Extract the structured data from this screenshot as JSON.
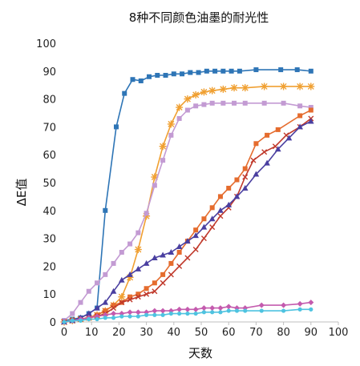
{
  "chart_data": {
    "type": "line",
    "title": "8种不同颜色油墨的耐光性",
    "xlabel": "天数",
    "ylabel": "ΔE值",
    "xlim": [
      0,
      100
    ],
    "ylim": [
      0,
      100
    ],
    "xticks": [
      "0",
      "10",
      "20",
      "30",
      "40",
      "50",
      "60",
      "70",
      "80",
      "90",
      "100"
    ],
    "yticks": [
      "0",
      "10",
      "20",
      "30",
      "40",
      "50",
      "60",
      "70",
      "80",
      "90",
      "100"
    ],
    "grid": false,
    "legend": "none",
    "series": [
      {
        "color": "#2e75b6",
        "marker": "square",
        "points": [
          [
            0,
            0.5
          ],
          [
            3,
            1
          ],
          [
            6,
            1.5
          ],
          [
            9,
            3
          ],
          [
            12,
            5
          ],
          [
            15,
            40
          ],
          [
            19,
            70
          ],
          [
            22,
            82
          ],
          [
            25,
            87
          ],
          [
            28,
            86.5
          ],
          [
            31,
            88
          ],
          [
            34,
            88.5
          ],
          [
            37,
            88.5
          ],
          [
            40,
            89
          ],
          [
            43,
            89
          ],
          [
            46,
            89.5
          ],
          [
            49,
            89.5
          ],
          [
            52,
            90
          ],
          [
            55,
            90
          ],
          [
            58,
            90
          ],
          [
            61,
            90
          ],
          [
            64,
            90
          ],
          [
            70,
            90.5
          ],
          [
            79,
            90.5
          ],
          [
            85,
            90.5
          ],
          [
            90,
            90
          ]
        ]
      },
      {
        "color": "#f0a032",
        "marker": "star",
        "points": [
          [
            0,
            0
          ],
          [
            3,
            0.5
          ],
          [
            6,
            1
          ],
          [
            9,
            1.5
          ],
          [
            12,
            2.5
          ],
          [
            15,
            4
          ],
          [
            18,
            6
          ],
          [
            21,
            9
          ],
          [
            24,
            16
          ],
          [
            27,
            26
          ],
          [
            30,
            38
          ],
          [
            33,
            52
          ],
          [
            36,
            63
          ],
          [
            39,
            71
          ],
          [
            42,
            77
          ],
          [
            45,
            80
          ],
          [
            48,
            81.5
          ],
          [
            51,
            82.5
          ],
          [
            54,
            83
          ],
          [
            58,
            83.5
          ],
          [
            62,
            84
          ],
          [
            66,
            84
          ],
          [
            73,
            84.5
          ],
          [
            80,
            84.5
          ],
          [
            86,
            84.5
          ],
          [
            90,
            84.5
          ]
        ]
      },
      {
        "color": "#c39bd3",
        "marker": "square",
        "points": [
          [
            0,
            0.5
          ],
          [
            3,
            3
          ],
          [
            6,
            7
          ],
          [
            9,
            11
          ],
          [
            12,
            14
          ],
          [
            15,
            17
          ],
          [
            18,
            21
          ],
          [
            21,
            25
          ],
          [
            24,
            28
          ],
          [
            27,
            32
          ],
          [
            30,
            39
          ],
          [
            33,
            49
          ],
          [
            36,
            58
          ],
          [
            39,
            67
          ],
          [
            42,
            73
          ],
          [
            45,
            76
          ],
          [
            48,
            77.5
          ],
          [
            51,
            78
          ],
          [
            54,
            78.5
          ],
          [
            58,
            78.5
          ],
          [
            62,
            78.5
          ],
          [
            66,
            78.5
          ],
          [
            73,
            78.5
          ],
          [
            80,
            78.5
          ],
          [
            86,
            77.5
          ],
          [
            90,
            77
          ]
        ]
      },
      {
        "color": "#e56c2e",
        "marker": "square",
        "points": [
          [
            0,
            0
          ],
          [
            3,
            0.5
          ],
          [
            6,
            1
          ],
          [
            9,
            1.5
          ],
          [
            12,
            2.5
          ],
          [
            15,
            4
          ],
          [
            18,
            6
          ],
          [
            21,
            7
          ],
          [
            24,
            9
          ],
          [
            27,
            10
          ],
          [
            30,
            12
          ],
          [
            33,
            14
          ],
          [
            36,
            17
          ],
          [
            39,
            21
          ],
          [
            42,
            25
          ],
          [
            45,
            29
          ],
          [
            48,
            33
          ],
          [
            51,
            37
          ],
          [
            54,
            41
          ],
          [
            57,
            45
          ],
          [
            60,
            48
          ],
          [
            63,
            51
          ],
          [
            66,
            55
          ],
          [
            70,
            64
          ],
          [
            74,
            67
          ],
          [
            78,
            69
          ],
          [
            86,
            74
          ],
          [
            90,
            76
          ]
        ]
      },
      {
        "color": "#c0392b",
        "marker": "x",
        "points": [
          [
            0,
            0
          ],
          [
            3,
            0.5
          ],
          [
            6,
            1
          ],
          [
            9,
            1.5
          ],
          [
            12,
            2
          ],
          [
            15,
            3
          ],
          [
            18,
            5
          ],
          [
            21,
            7
          ],
          [
            24,
            8
          ],
          [
            27,
            9
          ],
          [
            30,
            10
          ],
          [
            33,
            11
          ],
          [
            36,
            14
          ],
          [
            39,
            17
          ],
          [
            42,
            20
          ],
          [
            45,
            23
          ],
          [
            48,
            26
          ],
          [
            51,
            30
          ],
          [
            54,
            34
          ],
          [
            57,
            38
          ],
          [
            60,
            41
          ],
          [
            63,
            45
          ],
          [
            66,
            52
          ],
          [
            69,
            58
          ],
          [
            73,
            61
          ],
          [
            77,
            63
          ],
          [
            81,
            67
          ],
          [
            86,
            70
          ],
          [
            90,
            73
          ]
        ]
      },
      {
        "color": "#4a3fa0",
        "marker": "triangle",
        "points": [
          [
            0,
            0
          ],
          [
            3,
            0.5
          ],
          [
            6,
            1.5
          ],
          [
            9,
            3
          ],
          [
            12,
            5
          ],
          [
            15,
            7
          ],
          [
            18,
            11
          ],
          [
            21,
            15
          ],
          [
            24,
            17
          ],
          [
            27,
            19
          ],
          [
            30,
            21
          ],
          [
            33,
            23
          ],
          [
            36,
            24
          ],
          [
            39,
            25
          ],
          [
            42,
            27
          ],
          [
            45,
            29
          ],
          [
            48,
            31
          ],
          [
            51,
            34
          ],
          [
            54,
            37
          ],
          [
            57,
            40
          ],
          [
            60,
            42
          ],
          [
            63,
            45
          ],
          [
            66,
            48
          ],
          [
            70,
            53
          ],
          [
            74,
            57
          ],
          [
            78,
            62
          ],
          [
            82,
            66
          ],
          [
            86,
            70
          ],
          [
            90,
            72
          ]
        ]
      },
      {
        "color": "#c45bae",
        "marker": "diamond",
        "points": [
          [
            0,
            0
          ],
          [
            3,
            0.5
          ],
          [
            6,
            1
          ],
          [
            9,
            1.5
          ],
          [
            12,
            2
          ],
          [
            15,
            2.5
          ],
          [
            18,
            3
          ],
          [
            21,
            3
          ],
          [
            24,
            3.5
          ],
          [
            27,
            3.5
          ],
          [
            30,
            3.5
          ],
          [
            33,
            4
          ],
          [
            36,
            4
          ],
          [
            39,
            4
          ],
          [
            42,
            4.5
          ],
          [
            45,
            4.5
          ],
          [
            48,
            4.5
          ],
          [
            51,
            5
          ],
          [
            54,
            5
          ],
          [
            57,
            5
          ],
          [
            60,
            5.5
          ],
          [
            63,
            5
          ],
          [
            66,
            5
          ],
          [
            72,
            6
          ],
          [
            80,
            6
          ],
          [
            86,
            6.5
          ],
          [
            90,
            7
          ]
        ]
      },
      {
        "color": "#4ec3e0",
        "marker": "circle",
        "points": [
          [
            0,
            0
          ],
          [
            3,
            0.5
          ],
          [
            6,
            0.5
          ],
          [
            9,
            1
          ],
          [
            12,
            1
          ],
          [
            15,
            1.5
          ],
          [
            18,
            1.5
          ],
          [
            21,
            2
          ],
          [
            24,
            2
          ],
          [
            27,
            2
          ],
          [
            30,
            2.5
          ],
          [
            33,
            2.5
          ],
          [
            36,
            2.5
          ],
          [
            39,
            3
          ],
          [
            42,
            3
          ],
          [
            45,
            3
          ],
          [
            48,
            3
          ],
          [
            51,
            3.5
          ],
          [
            54,
            3.5
          ],
          [
            57,
            3.5
          ],
          [
            60,
            4
          ],
          [
            63,
            4
          ],
          [
            66,
            4
          ],
          [
            72,
            4
          ],
          [
            80,
            4
          ],
          [
            86,
            4.5
          ],
          [
            90,
            4.5
          ]
        ]
      }
    ]
  }
}
